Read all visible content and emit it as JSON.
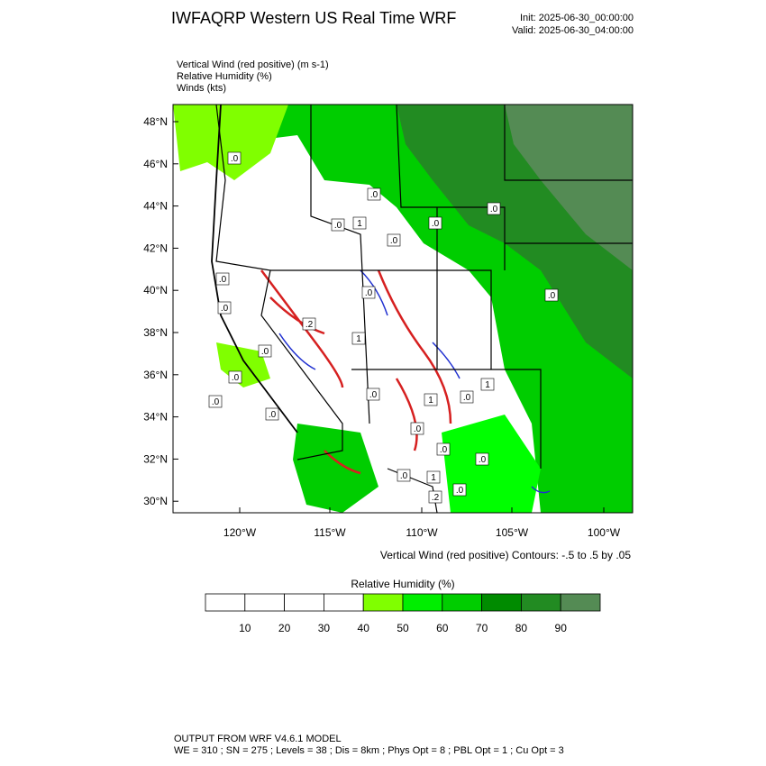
{
  "header": {
    "title": "IWFAQRP Western US Real Time WRF",
    "init": "Init: 2025-06-30_00:00:00",
    "valid": "Valid: 2025-06-30_04:00:00"
  },
  "fields": [
    "Vertical Wind (red positive)   (m s-1)",
    "Relative Humidity   (%)",
    "Winds   (kts)"
  ],
  "map": {
    "lat_labels": [
      "48°N",
      "46°N",
      "44°N",
      "42°N",
      "40°N",
      "38°N",
      "36°N",
      "34°N",
      "32°N",
      "30°N"
    ],
    "lon_labels": [
      "120°W",
      "115°W",
      "110°W",
      "105°W",
      "100°W"
    ],
    "contour_labels": [
      ".0",
      ".0",
      "1",
      ".0",
      ".0",
      ".0",
      ".0",
      ".0",
      ".0",
      ".0",
      ".0",
      ".0",
      ".0",
      ".0",
      "1",
      ".0",
      "1",
      ".0",
      ".0",
      ".0",
      "1",
      ".0",
      ".2",
      ".2",
      "1",
      ".0",
      ".0",
      ".0"
    ],
    "contour_note": "Vertical Wind (red positive) Contours: -.5 to .5 by .05"
  },
  "colorbar": {
    "title": "Relative Humidity  (%)",
    "labels": [
      "10",
      "20",
      "30",
      "40",
      "50",
      "60",
      "70",
      "80",
      "90"
    ],
    "colors": [
      "#ffffff",
      "#ffffff",
      "#ffffff",
      "#ffffff",
      "#80ff00",
      "#00ee00",
      "#00cd00",
      "#008b00",
      "#228b22",
      "#548b54"
    ]
  },
  "footer": {
    "line1": "OUTPUT FROM WRF V4.6.1 MODEL",
    "line2": "WE = 310 ; SN = 275 ; Levels = 38 ; Dis = 8km ; Phys Opt = 8 ; PBL Opt = 1 ; Cu Opt = 3"
  }
}
